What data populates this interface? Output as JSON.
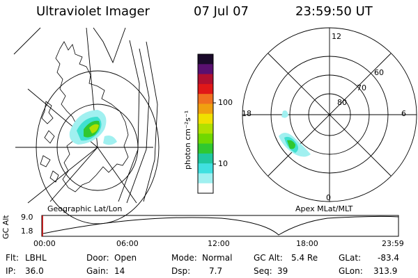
{
  "header": {
    "title": "Ultraviolet Imager",
    "date": "07 Jul 07",
    "time": "23:59:50 UT"
  },
  "left_map": {
    "caption": "Geographic Lat/Lon"
  },
  "right_map": {
    "caption": "Apex  MLat/MLT",
    "mlt_labels": {
      "top": "12",
      "left": "18",
      "right": "6",
      "bottom": "0"
    },
    "lat_labels": [
      "60",
      "70",
      "80"
    ]
  },
  "colorbar": {
    "label": "photon cm⁻²s⁻¹",
    "ticks": [
      "100",
      "10"
    ],
    "colors": [
      "#1a0a2a",
      "#5a1070",
      "#b01030",
      "#e01818",
      "#f07020",
      "#f0a010",
      "#f0e000",
      "#b0e000",
      "#70d800",
      "#30c830",
      "#20c8a0",
      "#40e0e0",
      "#a0f0f0",
      "#ffffff"
    ]
  },
  "altitude_plot": {
    "ylabel": "GC Alt",
    "ymax": "9.0",
    "ymin": "1.8",
    "x_ticks": [
      "00:00",
      "06:00",
      "12:00",
      "18:00",
      "23:59"
    ]
  },
  "info": {
    "flt_label": "Flt:",
    "flt_value": "LBHL",
    "ip_label": "IP:",
    "ip_value": "36.0",
    "door_label": "Door:",
    "door_value": "Open",
    "gain_label": "Gain:",
    "gain_value": "14",
    "mode_label": "Mode:",
    "mode_value": "Normal",
    "dsp_label": "Dsp:",
    "dsp_value": "7.7",
    "gcalt_label": "GC Alt:",
    "gcalt_value": "5.4 Re",
    "seq_label": "Seq:",
    "seq_value": "39",
    "glat_label": "GLat:",
    "glat_value": "-83.4",
    "glon_label": "GLon:",
    "glon_value": "313.9"
  }
}
